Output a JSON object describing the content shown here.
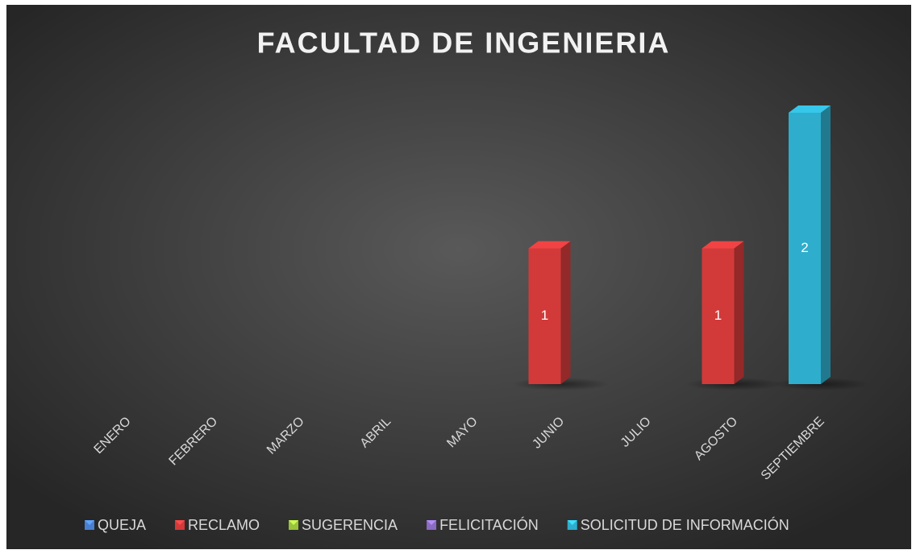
{
  "chart_data": {
    "type": "bar3d",
    "title": "FACULTAD DE INGENIERIA",
    "categories": [
      "ENERO",
      "FEBRERO",
      "MARZO",
      "ABRIL",
      "MAYO",
      "JUNIO",
      "JULIO",
      "AGOSTO",
      "SEPTIEMBRE"
    ],
    "series": [
      {
        "name": "QUEJA",
        "color": "#4a7fd0",
        "values": [
          null,
          null,
          null,
          null,
          null,
          null,
          null,
          null,
          null
        ]
      },
      {
        "name": "RECLAMO",
        "color": "#d23a3a",
        "values": [
          null,
          null,
          null,
          null,
          null,
          1,
          null,
          1,
          null
        ]
      },
      {
        "name": "SUGERENCIA",
        "color": "#9bc23c",
        "values": [
          null,
          null,
          null,
          null,
          null,
          null,
          null,
          null,
          null
        ]
      },
      {
        "name": "FELICITACIÓN",
        "color": "#8a6cc0",
        "values": [
          null,
          null,
          null,
          null,
          null,
          null,
          null,
          null,
          null
        ]
      },
      {
        "name": "SOLICITUD DE INFORMACIÓN",
        "color": "#2fadcc",
        "values": [
          null,
          null,
          null,
          null,
          null,
          null,
          null,
          null,
          2
        ]
      }
    ],
    "legend": "bottom"
  }
}
